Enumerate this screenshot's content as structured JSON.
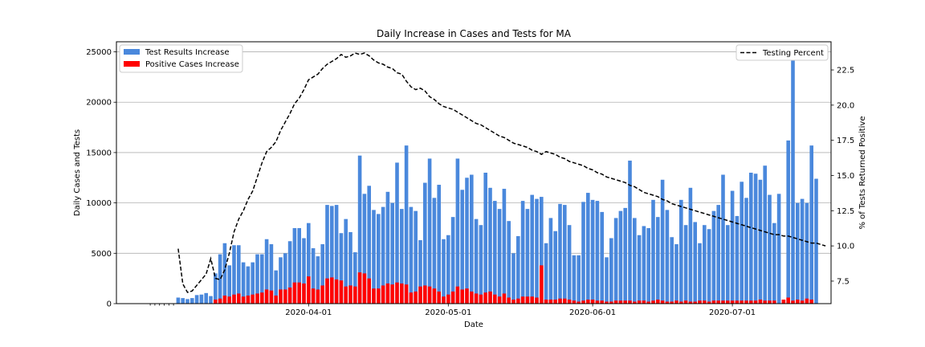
{
  "chart_data": {
    "type": "bar+line",
    "title": "Daily Increase in Cases and Tests for MA",
    "xlabel": "Date",
    "ylabel": "Daily Cases and Tests",
    "y2label": "% of Tests Returned Positive",
    "ylim": [
      0,
      26000
    ],
    "y2lim": [
      5.9,
      24.5
    ],
    "yticks": [
      "0",
      "5000",
      "10000",
      "15000",
      "20000",
      "25000"
    ],
    "yticks_values": [
      0,
      5000,
      10000,
      15000,
      20000,
      25000
    ],
    "y2ticks": [
      "7.5",
      "10.0",
      "12.5",
      "15.0",
      "17.5",
      "20.0",
      "22.5"
    ],
    "y2ticks_values": [
      7.5,
      10.0,
      12.5,
      15.0,
      17.5,
      20.0,
      22.5
    ],
    "xticks": [
      "2020-04-01",
      "2020-05-01",
      "2020-06-01",
      "2020-07-01"
    ],
    "x_start": "2020-03-01",
    "grid": "y",
    "legend_left": [
      "Test Results Increase",
      "Positive Cases Increase"
    ],
    "legend_right": [
      "Testing Percent"
    ],
    "colors": {
      "tests": "#4a88dc",
      "positive": "#ff0000",
      "percent": "#000000"
    },
    "series": [
      {
        "name": "Test Results Increase",
        "values": [
          0,
          0,
          0,
          600,
          550,
          450,
          550,
          850,
          900,
          1050,
          750,
          3000,
          4900,
          6000,
          3800,
          5800,
          5800,
          4100,
          3700,
          4100,
          4900,
          4900,
          6400,
          5900,
          3300,
          4600,
          5000,
          6200,
          7500,
          7500,
          6500,
          8000,
          5500,
          4700,
          5900,
          9800,
          9700,
          9800,
          7000,
          8400,
          7100,
          5100,
          14700,
          10900,
          11700,
          9300,
          8900,
          9600,
          11100,
          10000,
          14000,
          9400,
          15700,
          9600,
          9200,
          6300,
          12000,
          14400,
          10500,
          11800,
          6400,
          6800,
          8600,
          14400,
          11300,
          12500,
          12800,
          8400,
          7800,
          13000,
          11500,
          10200,
          9400,
          11400,
          8200,
          5000,
          6700,
          10200,
          9400,
          10800,
          10400,
          10600,
          6000,
          8500,
          7200,
          9900,
          9800,
          7800,
          4800,
          4800,
          10100,
          11000,
          10300,
          10200,
          9100,
          4600,
          6500,
          8500,
          9200,
          9500,
          14200,
          8500,
          6800,
          7700,
          7500,
          10300,
          8600,
          12300,
          9300,
          6600,
          5900,
          10300,
          7800,
          11500,
          8100,
          6000,
          7800,
          7400,
          9200,
          9800,
          12800,
          7800,
          11200,
          8700,
          12100,
          10500,
          13000,
          12900,
          12300,
          13700,
          10800,
          8000,
          10900,
          0,
          16200,
          24700,
          10000,
          10400,
          10000,
          15700,
          12400
        ]
      },
      {
        "name": "Positive Cases Increase",
        "values": [
          0,
          0,
          0,
          0,
          0,
          0,
          0,
          0,
          0,
          0,
          0,
          400,
          500,
          800,
          700,
          900,
          1000,
          700,
          800,
          900,
          1000,
          1100,
          1400,
          1300,
          800,
          1400,
          1400,
          1600,
          2100,
          2100,
          2000,
          2700,
          1500,
          1400,
          1800,
          2500,
          2600,
          2400,
          2300,
          1700,
          1800,
          1700,
          3100,
          3000,
          2500,
          1500,
          1500,
          1800,
          2000,
          1900,
          2100,
          2000,
          1900,
          1100,
          1200,
          1700,
          1800,
          1700,
          1500,
          1200,
          700,
          900,
          1200,
          1700,
          1400,
          1500,
          1200,
          1000,
          900,
          1100,
          1200,
          900,
          700,
          1000,
          600,
          400,
          500,
          700,
          700,
          700,
          600,
          3800,
          400,
          400,
          400,
          500,
          500,
          400,
          300,
          200,
          300,
          400,
          400,
          300,
          300,
          200,
          200,
          300,
          300,
          300,
          300,
          200,
          300,
          300,
          200,
          300,
          400,
          300,
          200,
          200,
          300,
          200,
          300,
          200,
          200,
          300,
          300,
          200,
          300,
          300,
          300,
          300,
          300,
          300,
          300,
          300,
          300,
          300,
          400,
          300,
          300,
          300,
          0,
          400,
          600,
          300,
          400,
          300,
          500,
          400
        ]
      },
      {
        "name": "Testing Percent",
        "values": [
          null,
          null,
          null,
          9.8,
          7.3,
          6.7,
          6.8,
          7.2,
          7.6,
          8.0,
          9.1,
          7.7,
          7.6,
          8.3,
          9.5,
          11.0,
          11.9,
          12.5,
          13.3,
          13.9,
          14.9,
          15.9,
          16.7,
          17.0,
          17.4,
          18.2,
          18.8,
          19.4,
          20.1,
          20.5,
          21.1,
          21.8,
          22.0,
          22.2,
          22.6,
          22.9,
          23.1,
          23.3,
          23.6,
          23.4,
          23.5,
          23.7,
          23.6,
          23.7,
          23.5,
          23.2,
          23.0,
          22.9,
          22.7,
          22.6,
          22.3,
          22.2,
          21.7,
          21.3,
          21.1,
          21.2,
          21.0,
          20.6,
          20.4,
          20.1,
          19.9,
          19.8,
          19.7,
          19.5,
          19.3,
          19.1,
          18.9,
          18.7,
          18.6,
          18.4,
          18.2,
          18.0,
          17.8,
          17.7,
          17.5,
          17.3,
          17.2,
          17.1,
          17.0,
          16.8,
          16.7,
          16.5,
          16.7,
          16.6,
          16.5,
          16.3,
          16.2,
          16.0,
          15.9,
          15.8,
          15.7,
          15.5,
          15.4,
          15.2,
          15.1,
          14.9,
          14.8,
          14.7,
          14.6,
          14.5,
          14.3,
          14.2,
          14.0,
          13.8,
          13.7,
          13.6,
          13.5,
          13.3,
          13.2,
          13.0,
          12.9,
          12.8,
          12.7,
          12.6,
          12.5,
          12.4,
          12.3,
          12.2,
          12.1,
          12.0,
          11.9,
          11.8,
          11.7,
          11.6,
          11.5,
          11.4,
          11.3,
          11.2,
          11.1,
          11.0,
          10.9,
          10.8,
          10.8,
          10.7,
          10.7,
          10.6,
          10.5,
          10.4,
          10.3,
          10.2,
          10.2,
          10.1,
          10.0
        ]
      }
    ]
  }
}
